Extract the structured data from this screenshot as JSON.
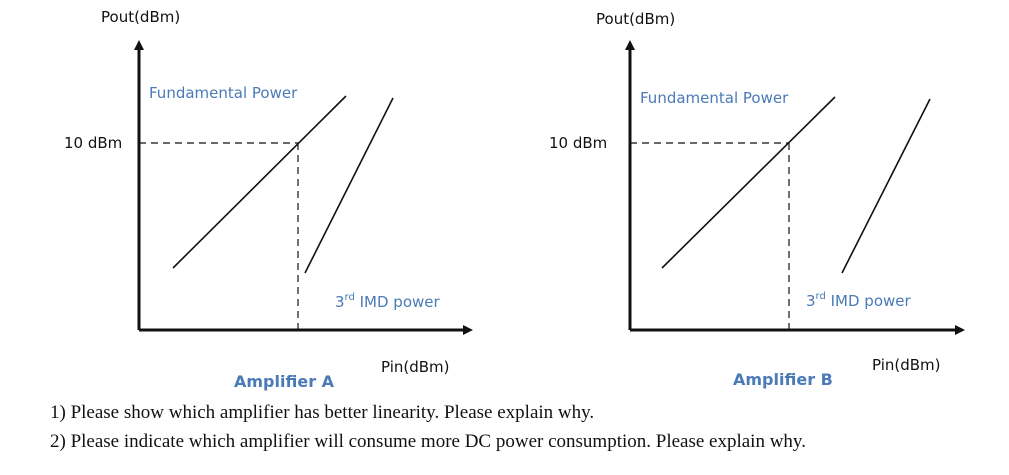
{
  "diagram_a": {
    "y_axis_label": "Pout(dBm)",
    "x_axis_label": "Pin(dBm)",
    "level_label": "10 dBm",
    "fundamental_label": "Fundamental Power",
    "imd_prefix": "3",
    "imd_sup": "rd",
    "imd_suffix": " IMD power",
    "title": "Amplifier A"
  },
  "diagram_b": {
    "y_axis_label": "Pout(dBm)",
    "x_axis_label": "Pin(dBm)",
    "level_label": "10 dBm",
    "fundamental_label": "Fundamental Power",
    "imd_prefix": "3",
    "imd_sup": "rd",
    "imd_suffix": " IMD power",
    "title": "Amplifier B"
  },
  "questions": [
    "1) Please show which amplifier has better linearity. Please explain why.",
    "2) Please indicate which amplifier will consume more DC power consumption. Please explain why."
  ]
}
